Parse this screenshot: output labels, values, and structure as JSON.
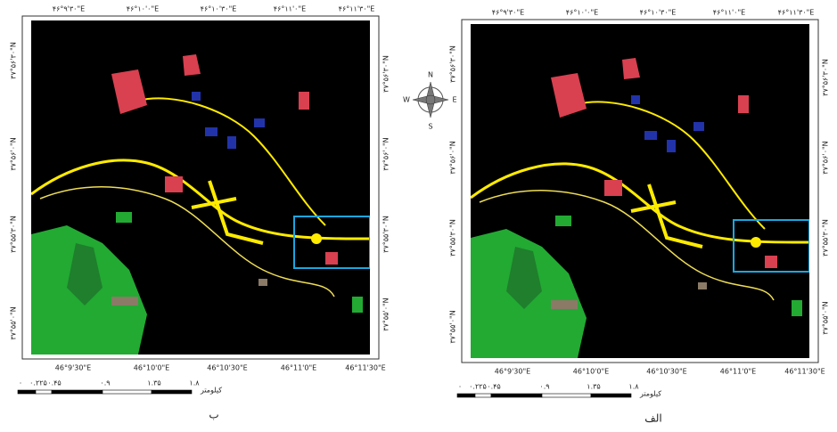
{
  "compass": {
    "n": "N",
    "s": "S",
    "e": "E",
    "w": "W"
  },
  "panels": [
    {
      "caption": "ب",
      "top_labels": [
        "۴۶°۹'۳۰\"E",
        "۴۶°۱۰'۰\"E",
        "۴۶°۱۰'۳۰\"E",
        "۴۶°۱۱'۰\"E",
        "۴۶°۱۱'۳۰\"E"
      ],
      "bottom_labels": [
        "46°9'30\"E",
        "46°10'0\"E",
        "46°10'30\"E",
        "46°11'0\"E",
        "46°11'30\"E"
      ],
      "left_labels": [
        "۳۷°۵۶'۳۰\"N",
        "۳۷°۵۶'۰\"N",
        "۳۷°۵۵'۳۰\"N",
        "۳۷°۵۵'۰\"N"
      ],
      "right_labels": [
        "۳۷°۵۶'۳۰\"N",
        "۳۷°۵۶'۰\"N",
        "۳۷°۵۵'۳۰\"N",
        "۳۷°۵۵'۰\"N"
      ],
      "scale_ticks": [
        "۰",
        "۰.۲۲۵",
        "۰.۴۵",
        "۰.۹",
        "۱.۳۵",
        "۱.۸"
      ],
      "scale_unit": "کیلومتر"
    },
    {
      "caption": "الف",
      "top_labels": [
        "۴۶°۹'۳۰\"E",
        "۴۶°۱۰'۰\"E",
        "۴۶°۱۰'۳۰\"E",
        "۴۶°۱۱'۰\"E",
        "۴۶°۱۱'۳۰\"E"
      ],
      "bottom_labels": [
        "46°9'30\"E",
        "46°10'0\"E",
        "46°10'30\"E",
        "46°11'0\"E",
        "46°11'30\"E"
      ],
      "left_labels": [
        "۳۷°۵۶'۳۰\"N",
        "۳۷°۵۶'۰\"N",
        "۳۷°۵۵'۳۰\"N",
        "۳۷°۵۵'۰\"N"
      ],
      "right_labels": [
        "۳۷°۵۶'۳۰\"N",
        "۳۷°۵۶'۰\"N",
        "۳۷°۵۵'۳۰\"N",
        "۳۷°۵۵'۰\"N"
      ],
      "scale_ticks": [
        "۰",
        "۰.۲۲۵",
        "۰.۴۵",
        "۰.۹",
        "۱.۳۵",
        "۱.۸"
      ],
      "scale_unit": "کیلومتر"
    }
  ]
}
